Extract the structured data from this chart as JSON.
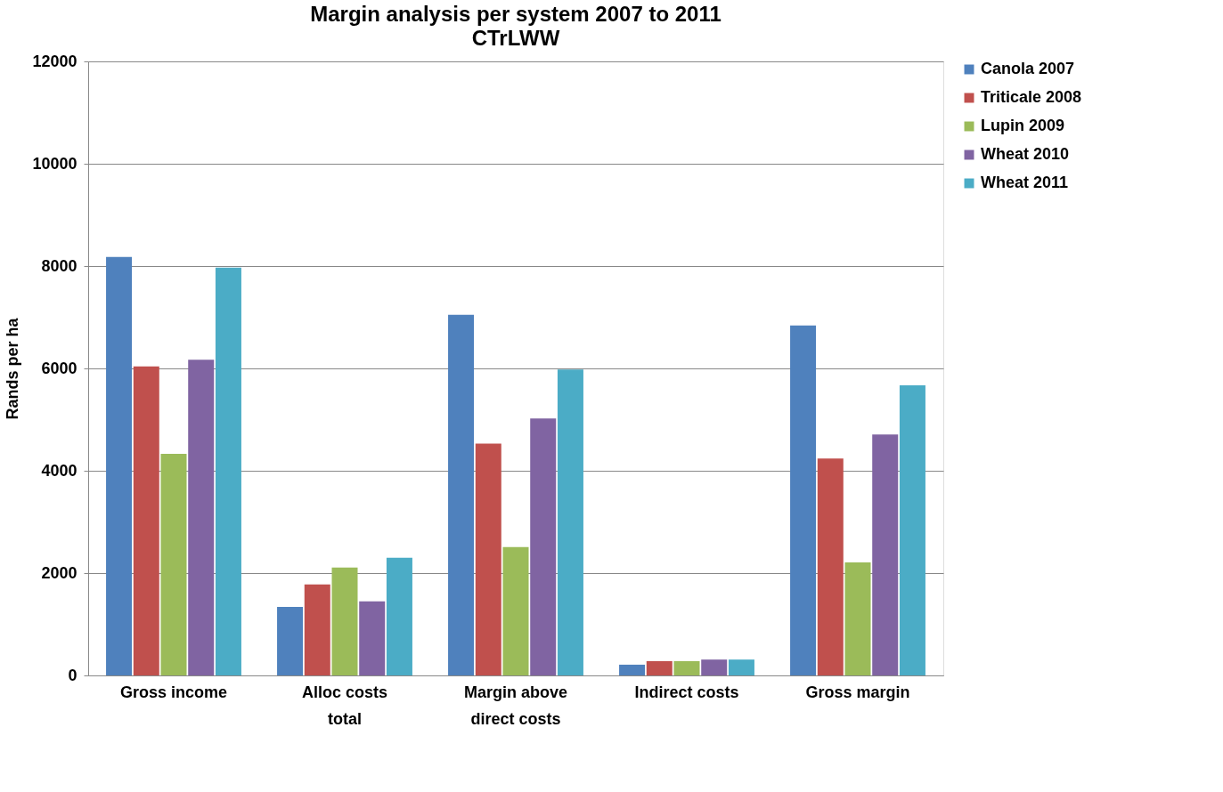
{
  "chart_data": {
    "type": "bar",
    "title": "Margin analysis per system 2007 to 2011",
    "subtitle": "CTrLWW",
    "ylabel": "Rands per ha",
    "categories": [
      "Gross income",
      "Alloc costs total",
      "Margin above direct costs",
      "Indirect costs",
      "Gross margin"
    ],
    "series": [
      {
        "name": "Canola 2007",
        "color": "#4f81bd",
        "values": [
          8180,
          1340,
          7050,
          210,
          6840
        ]
      },
      {
        "name": "Triticale 2008",
        "color": "#c0504d",
        "values": [
          6040,
          1780,
          4530,
          280,
          4240
        ]
      },
      {
        "name": "Lupin 2009",
        "color": "#9bbb59",
        "values": [
          4330,
          2110,
          2510,
          280,
          2210
        ]
      },
      {
        "name": "Wheat 2010",
        "color": "#8064a2",
        "values": [
          6170,
          1450,
          5020,
          310,
          4710
        ]
      },
      {
        "name": "Wheat 2011",
        "color": "#4bacc6",
        "values": [
          7970,
          2300,
          5980,
          310,
          5670
        ]
      }
    ],
    "ylim": [
      0,
      12000
    ],
    "yticks": [
      0,
      2000,
      4000,
      6000,
      8000,
      10000,
      12000
    ],
    "grid": "y",
    "legend": "right"
  }
}
